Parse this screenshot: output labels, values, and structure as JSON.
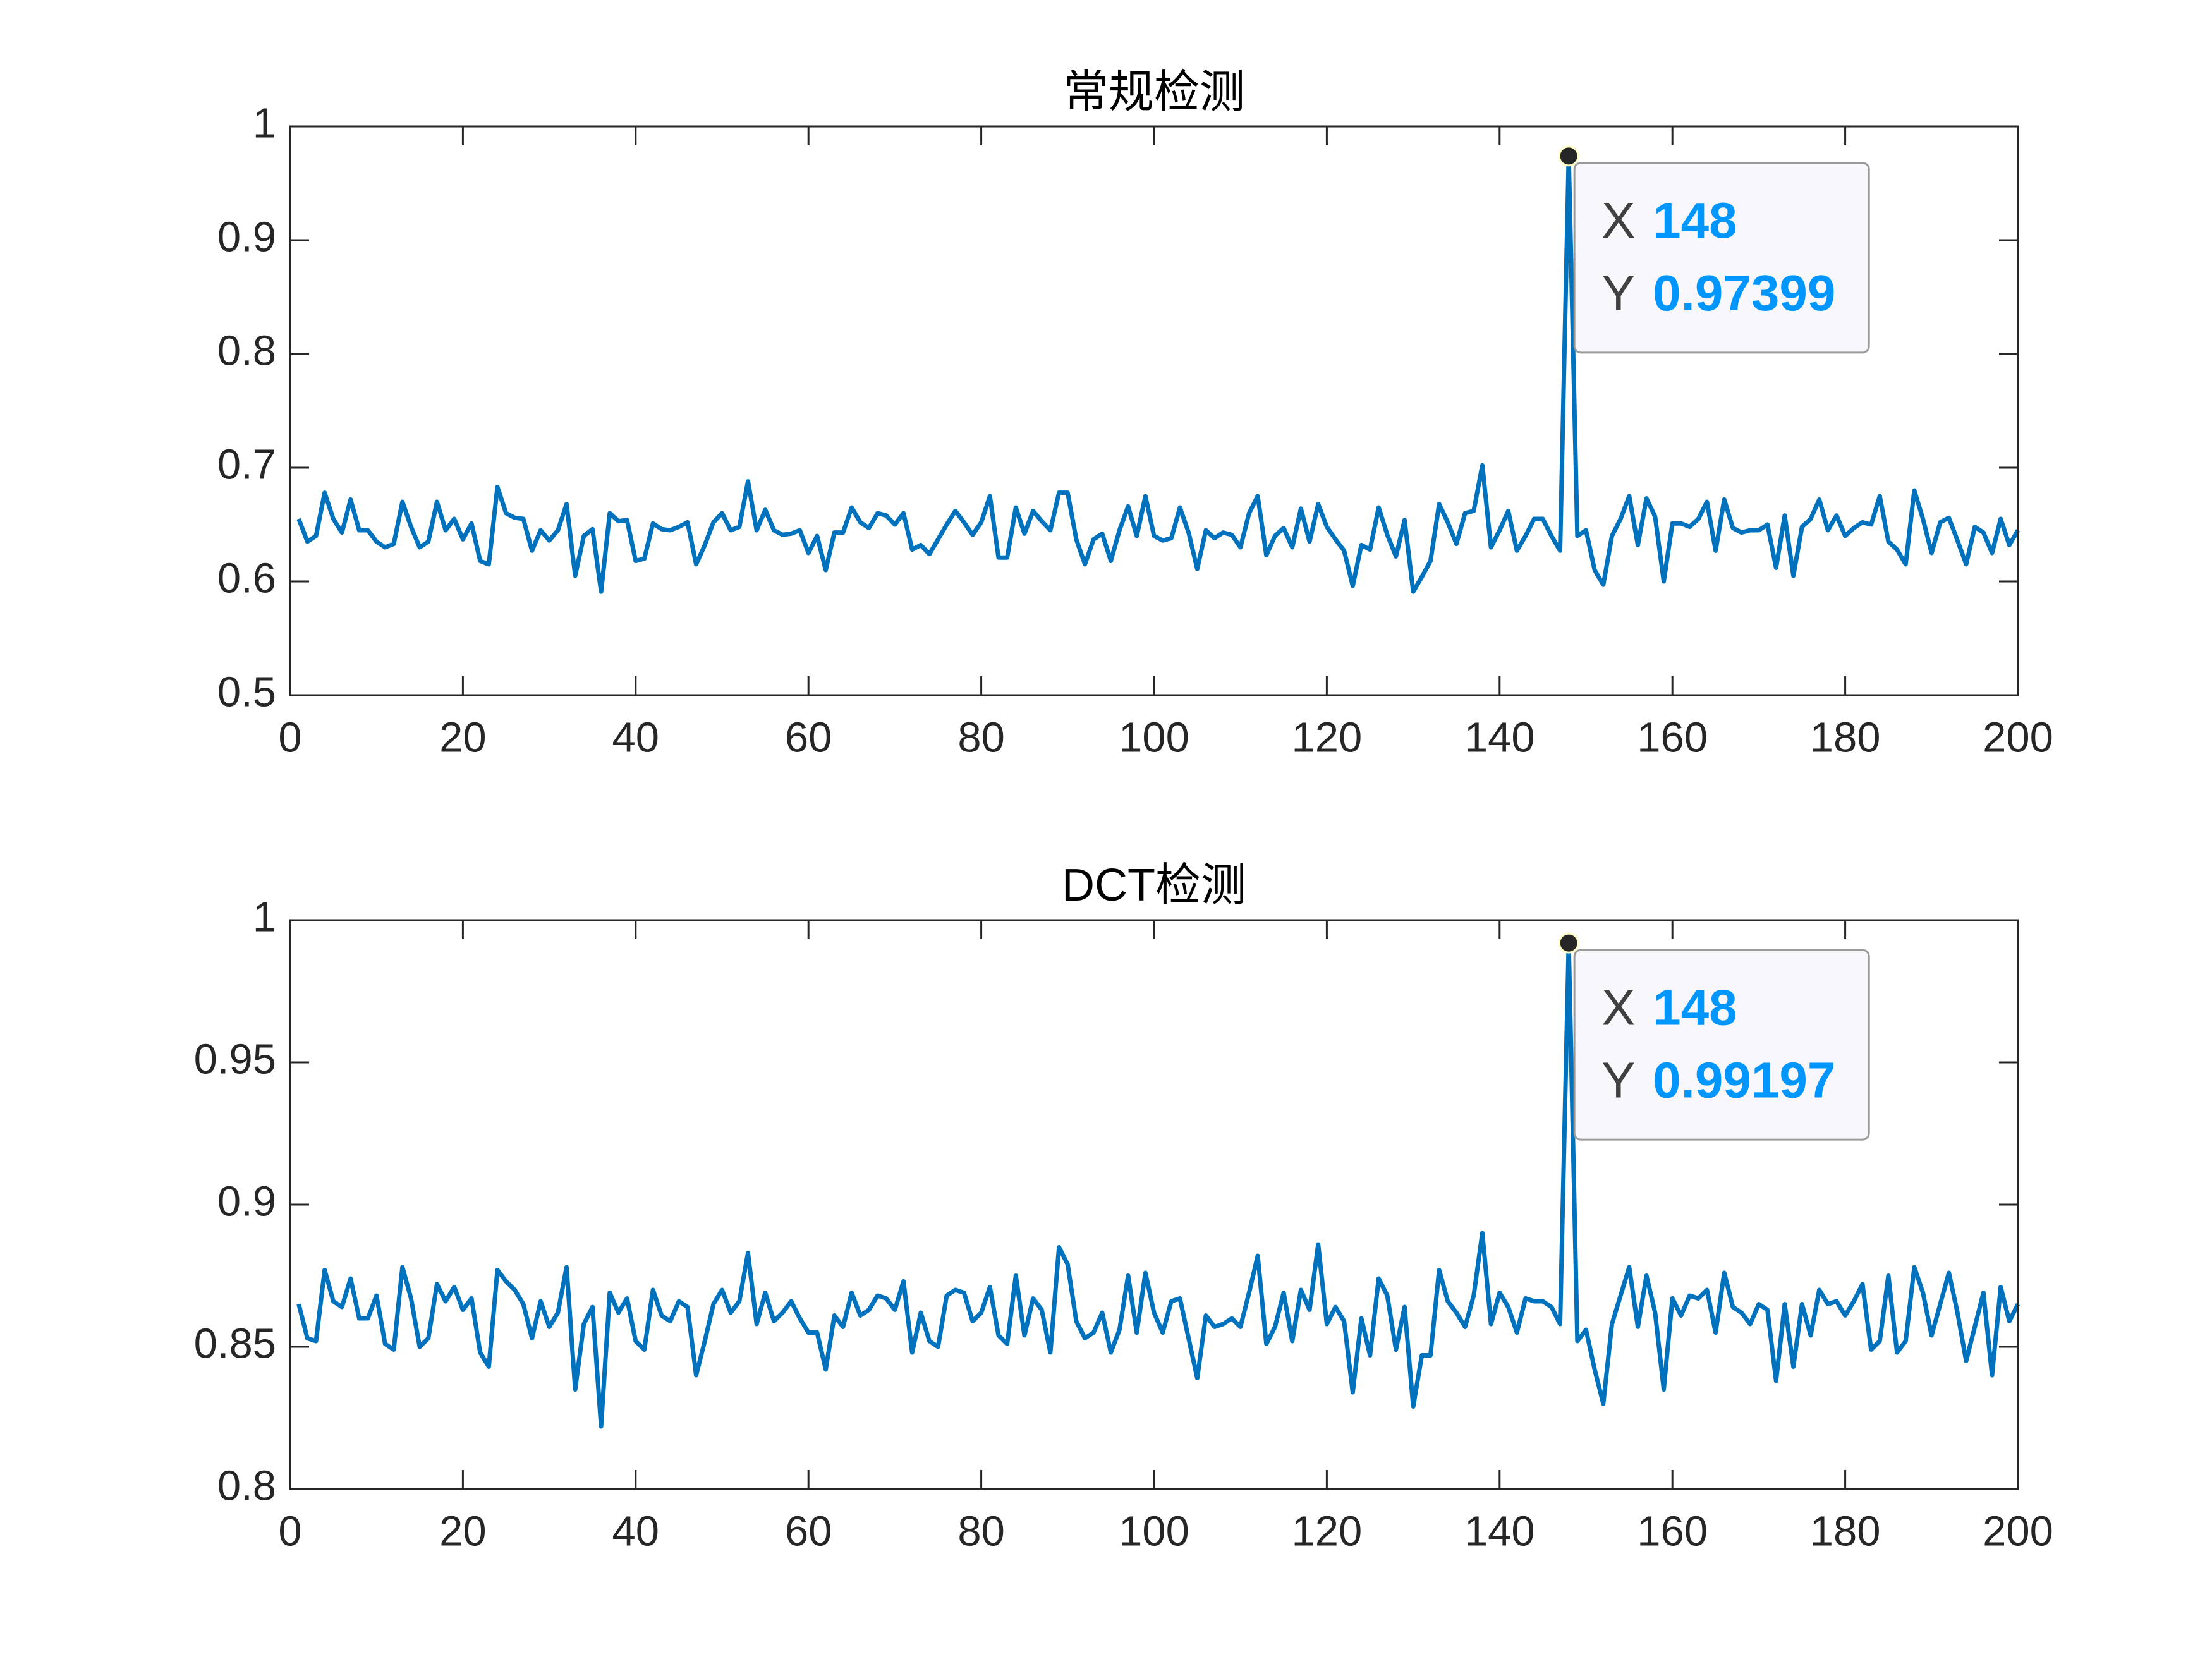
{
  "chart_data": [
    {
      "type": "line",
      "title": "常规检测",
      "x": [
        1,
        2,
        3,
        4,
        5,
        6,
        7,
        8,
        9,
        10,
        11,
        12,
        13,
        14,
        15,
        16,
        17,
        18,
        19,
        20,
        21,
        22,
        23,
        24,
        25,
        26,
        27,
        28,
        29,
        30,
        31,
        32,
        33,
        34,
        35,
        36,
        37,
        38,
        39,
        40,
        41,
        42,
        43,
        44,
        45,
        46,
        47,
        48,
        49,
        50,
        51,
        52,
        53,
        54,
        55,
        56,
        57,
        58,
        59,
        60,
        61,
        62,
        63,
        64,
        65,
        66,
        67,
        68,
        69,
        70,
        71,
        72,
        73,
        74,
        75,
        76,
        77,
        78,
        79,
        80,
        81,
        82,
        83,
        84,
        85,
        86,
        87,
        88,
        89,
        90,
        91,
        92,
        93,
        94,
        95,
        96,
        97,
        98,
        99,
        100,
        101,
        102,
        103,
        104,
        105,
        106,
        107,
        108,
        109,
        110,
        111,
        112,
        113,
        114,
        115,
        116,
        117,
        118,
        119,
        120,
        121,
        122,
        123,
        124,
        125,
        126,
        127,
        128,
        129,
        130,
        131,
        132,
        133,
        134,
        135,
        136,
        137,
        138,
        139,
        140,
        141,
        142,
        143,
        144,
        145,
        146,
        147,
        148,
        149,
        150,
        151,
        152,
        153,
        154,
        155,
        156,
        157,
        158,
        159,
        160,
        161,
        162,
        163,
        164,
        165,
        166,
        167,
        168,
        169,
        170,
        171,
        172,
        173,
        174,
        175,
        176,
        177,
        178,
        179,
        180,
        181,
        182,
        183,
        184,
        185,
        186,
        187,
        188,
        189,
        190,
        191,
        192,
        193,
        194,
        195,
        196,
        197,
        198,
        199,
        200
      ],
      "series": [
        {
          "color": "#0072bd",
          "values": [
            0.655,
            0.635,
            0.64,
            0.678,
            0.655,
            0.643,
            0.672,
            0.645,
            0.645,
            0.635,
            0.63,
            0.633,
            0.67,
            0.648,
            0.63,
            0.635,
            0.67,
            0.645,
            0.655,
            0.637,
            0.651,
            0.618,
            0.615,
            0.683,
            0.66,
            0.656,
            0.655,
            0.627,
            0.645,
            0.636,
            0.645,
            0.668,
            0.605,
            0.64,
            0.646,
            0.591,
            0.66,
            0.653,
            0.654,
            0.618,
            0.62,
            0.651,
            0.646,
            0.645,
            0.648,
            0.652,
            0.615,
            0.632,
            0.652,
            0.66,
            0.645,
            0.648,
            0.688,
            0.645,
            0.663,
            0.645,
            0.641,
            0.642,
            0.645,
            0.625,
            0.64,
            0.61,
            0.643,
            0.643,
            0.665,
            0.652,
            0.647,
            0.66,
            0.658,
            0.65,
            0.66,
            0.628,
            0.632,
            0.624,
            0.637,
            0.65,
            0.662,
            0.652,
            0.641,
            0.652,
            0.675,
            0.621,
            0.621,
            0.665,
            0.642,
            0.662,
            0.653,
            0.645,
            0.678,
            0.678,
            0.637,
            0.615,
            0.637,
            0.642,
            0.618,
            0.645,
            0.666,
            0.64,
            0.675,
            0.64,
            0.636,
            0.638,
            0.665,
            0.643,
            0.611,
            0.645,
            0.638,
            0.643,
            0.641,
            0.63,
            0.66,
            0.675,
            0.623,
            0.64,
            0.647,
            0.63,
            0.664,
            0.635,
            0.668,
            0.648,
            0.637,
            0.627,
            0.596,
            0.632,
            0.628,
            0.665,
            0.641,
            0.622,
            0.654,
            0.591,
            0.604,
            0.618,
            0.668,
            0.652,
            0.633,
            0.66,
            0.662,
            0.702,
            0.63,
            0.645,
            0.662,
            0.627,
            0.64,
            0.655,
            0.655,
            0.64,
            0.627,
            0.97399,
            0.64,
            0.645,
            0.61,
            0.597,
            0.64,
            0.655,
            0.675,
            0.632,
            0.673,
            0.657,
            0.6,
            0.651,
            0.651,
            0.648,
            0.655,
            0.67,
            0.627,
            0.672,
            0.647,
            0.643,
            0.645,
            0.645,
            0.65,
            0.612,
            0.658,
            0.605,
            0.648,
            0.655,
            0.672,
            0.645,
            0.658,
            0.64,
            0.647,
            0.652,
            0.65,
            0.675,
            0.635,
            0.628,
            0.615,
            0.68,
            0.655,
            0.625,
            0.652,
            0.656,
            0.636,
            0.615,
            0.648,
            0.643,
            0.625,
            0.655,
            0.632,
            0.645
          ]
        }
      ],
      "xlim": [
        0,
        200
      ],
      "xticks": [
        0,
        20,
        40,
        60,
        80,
        100,
        120,
        140,
        160,
        180,
        200
      ],
      "ylim": [
        0.5,
        1
      ],
      "yticks": [
        0.5,
        0.6,
        0.7,
        0.8,
        0.9,
        1
      ],
      "datatip": {
        "x_label": "X",
        "y_label": "Y",
        "x": 148,
        "y": 0.97399
      }
    },
    {
      "type": "line",
      "title": "DCT检测",
      "x": [
        1,
        2,
        3,
        4,
        5,
        6,
        7,
        8,
        9,
        10,
        11,
        12,
        13,
        14,
        15,
        16,
        17,
        18,
        19,
        20,
        21,
        22,
        23,
        24,
        25,
        26,
        27,
        28,
        29,
        30,
        31,
        32,
        33,
        34,
        35,
        36,
        37,
        38,
        39,
        40,
        41,
        42,
        43,
        44,
        45,
        46,
        47,
        48,
        49,
        50,
        51,
        52,
        53,
        54,
        55,
        56,
        57,
        58,
        59,
        60,
        61,
        62,
        63,
        64,
        65,
        66,
        67,
        68,
        69,
        70,
        71,
        72,
        73,
        74,
        75,
        76,
        77,
        78,
        79,
        80,
        81,
        82,
        83,
        84,
        85,
        86,
        87,
        88,
        89,
        90,
        91,
        92,
        93,
        94,
        95,
        96,
        97,
        98,
        99,
        100,
        101,
        102,
        103,
        104,
        105,
        106,
        107,
        108,
        109,
        110,
        111,
        112,
        113,
        114,
        115,
        116,
        117,
        118,
        119,
        120,
        121,
        122,
        123,
        124,
        125,
        126,
        127,
        128,
        129,
        130,
        131,
        132,
        133,
        134,
        135,
        136,
        137,
        138,
        139,
        140,
        141,
        142,
        143,
        144,
        145,
        146,
        147,
        148,
        149,
        150,
        151,
        152,
        153,
        154,
        155,
        156,
        157,
        158,
        159,
        160,
        161,
        162,
        163,
        164,
        165,
        166,
        167,
        168,
        169,
        170,
        171,
        172,
        173,
        174,
        175,
        176,
        177,
        178,
        179,
        180,
        181,
        182,
        183,
        184,
        185,
        186,
        187,
        188,
        189,
        190,
        191,
        192,
        193,
        194,
        195,
        196,
        197,
        198,
        199,
        200
      ],
      "series": [
        {
          "color": "#0072bd",
          "values": [
            0.865,
            0.853,
            0.852,
            0.877,
            0.866,
            0.864,
            0.874,
            0.86,
            0.86,
            0.868,
            0.851,
            0.849,
            0.878,
            0.867,
            0.85,
            0.853,
            0.872,
            0.866,
            0.871,
            0.863,
            0.867,
            0.848,
            0.843,
            0.877,
            0.873,
            0.87,
            0.865,
            0.853,
            0.866,
            0.857,
            0.862,
            0.878,
            0.835,
            0.858,
            0.864,
            0.822,
            0.869,
            0.862,
            0.867,
            0.852,
            0.849,
            0.87,
            0.861,
            0.859,
            0.866,
            0.864,
            0.84,
            0.852,
            0.865,
            0.87,
            0.862,
            0.866,
            0.883,
            0.858,
            0.869,
            0.859,
            0.862,
            0.866,
            0.86,
            0.855,
            0.855,
            0.842,
            0.861,
            0.857,
            0.869,
            0.861,
            0.863,
            0.868,
            0.867,
            0.863,
            0.873,
            0.848,
            0.862,
            0.852,
            0.85,
            0.868,
            0.87,
            0.869,
            0.859,
            0.862,
            0.871,
            0.854,
            0.851,
            0.875,
            0.854,
            0.867,
            0.863,
            0.848,
            0.885,
            0.879,
            0.859,
            0.853,
            0.855,
            0.862,
            0.848,
            0.856,
            0.875,
            0.855,
            0.876,
            0.862,
            0.855,
            0.866,
            0.867,
            0.853,
            0.839,
            0.861,
            0.857,
            0.858,
            0.86,
            0.857,
            0.869,
            0.882,
            0.851,
            0.857,
            0.869,
            0.852,
            0.87,
            0.863,
            0.886,
            0.858,
            0.864,
            0.859,
            0.834,
            0.86,
            0.847,
            0.874,
            0.868,
            0.849,
            0.864,
            0.829,
            0.847,
            0.847,
            0.877,
            0.866,
            0.862,
            0.857,
            0.868,
            0.89,
            0.858,
            0.869,
            0.864,
            0.855,
            0.867,
            0.866,
            0.866,
            0.864,
            0.858,
            0.99197,
            0.852,
            0.856,
            0.842,
            0.83,
            0.858,
            0.868,
            0.878,
            0.857,
            0.875,
            0.862,
            0.835,
            0.867,
            0.861,
            0.868,
            0.867,
            0.87,
            0.855,
            0.876,
            0.864,
            0.862,
            0.858,
            0.865,
            0.863,
            0.838,
            0.865,
            0.843,
            0.865,
            0.854,
            0.87,
            0.865,
            0.866,
            0.861,
            0.866,
            0.872,
            0.849,
            0.852,
            0.875,
            0.848,
            0.852,
            0.878,
            0.869,
            0.854,
            0.865,
            0.876,
            0.862,
            0.845,
            0.857,
            0.869,
            0.84,
            0.871,
            0.859,
            0.865
          ]
        }
      ],
      "xlim": [
        0,
        200
      ],
      "xticks": [
        0,
        20,
        40,
        60,
        80,
        100,
        120,
        140,
        160,
        180,
        200
      ],
      "ylim": [
        0.8,
        1
      ],
      "yticks": [
        0.8,
        0.85,
        0.9,
        0.95,
        1
      ],
      "datatip": {
        "x_label": "X",
        "y_label": "Y",
        "x": 148,
        "y": 0.99197
      }
    }
  ]
}
